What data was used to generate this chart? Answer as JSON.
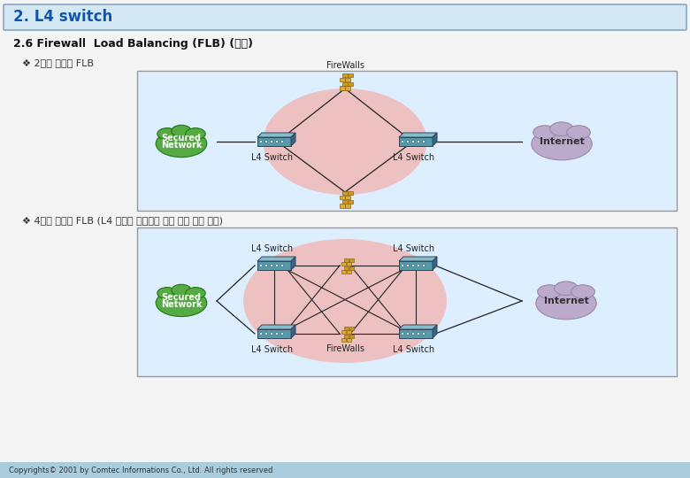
{
  "title": "2. L4 switch",
  "subtitle": "2.6 Firewall  Load Balancing (FLB) (계속)",
  "bullet1": "❖ 2대의 스위치 FLB",
  "bullet2": "❖ 4대의 스위치 FLB (L4 스위치 이중화로 장애 상황 대첫 가능)",
  "copyright": "Copyrights© 2001 by Comtec Informations Co., Ltd. All rights reserved",
  "header_bg": "#d4e8f4",
  "header_border": "#7799bb",
  "footer_bg": "#aaccdd",
  "body_bg": "#f4f4f4",
  "diagram_bg": "#ddeeff",
  "diagram_border": "#999999",
  "pink_oval_color": "#f0b8b8",
  "green_cloud_color": "#55aa44",
  "purple_cloud_color": "#bbaacc",
  "firewall_top_color": "#ddaa33",
  "firewall_mid_color": "#cc9922",
  "switch_top_color": "#5599aa",
  "switch_side_color": "#336677",
  "line_color": "#222222"
}
